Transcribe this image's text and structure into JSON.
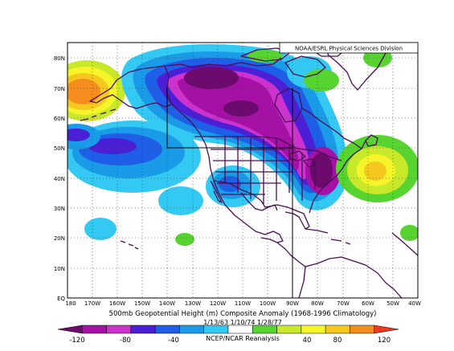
{
  "credit": "NOAA/ESRL Physical Sciences Division",
  "title": "500mb Geopotential Height (m) Composite Anomaly (1968-1996 Climatology)",
  "date_range": "1/13/63 1/10/74 1/28/77",
  "source": "NCEP/NCAR Reanalysis",
  "lat_labels": [
    "80N",
    "70N",
    "60N",
    "50N",
    "40N",
    "30N",
    "20N",
    "10N",
    "EQ"
  ],
  "lon_labels": [
    "180",
    "170W",
    "160W",
    "150W",
    "140W",
    "130W",
    "120W",
    "110W",
    "100W",
    "90W",
    "80W",
    "70W",
    "60W",
    "50W",
    "40W"
  ],
  "colorbar": {
    "tick_labels": [
      "-120",
      "-80",
      "-40",
      "40",
      "80",
      "120"
    ],
    "colors": [
      "#6d0a6d",
      "#a510a5",
      "#cc33cc",
      "#4b1fd6",
      "#1f5ee6",
      "#1a9be8",
      "#33c9f2",
      "#ffffff",
      "#57d430",
      "#c8e82a",
      "#f5f52a",
      "#f5c81f",
      "#f58e1f",
      "#ee3a1f"
    ]
  },
  "map_colors": {
    "land_border": "#4b0d55",
    "frame": "#000000"
  }
}
